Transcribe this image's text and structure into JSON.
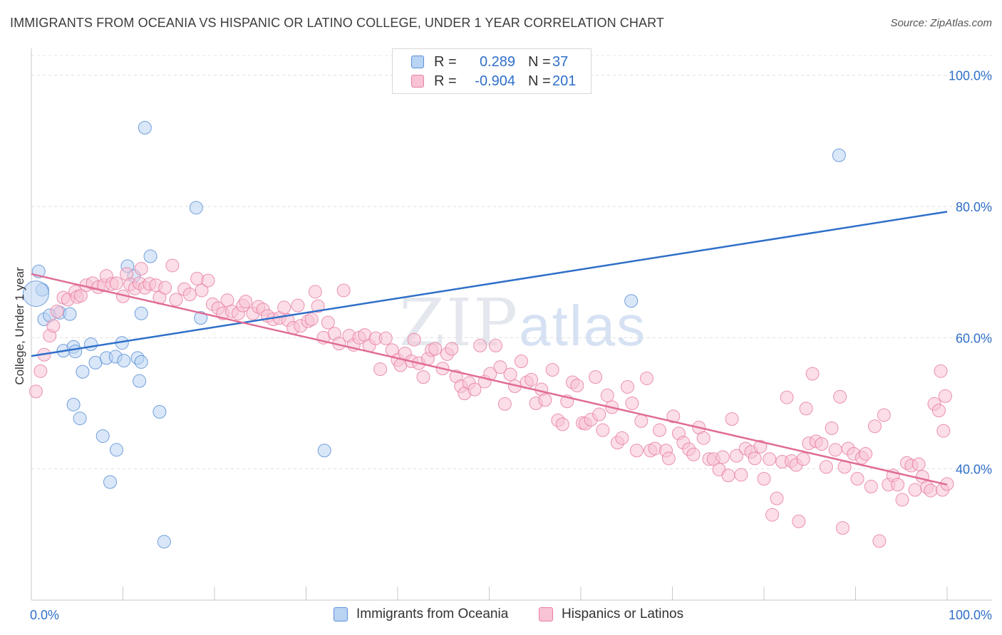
{
  "chart_data": {
    "type": "scatter",
    "title": "IMMIGRANTS FROM OCEANIA VS HISPANIC OR LATINO COLLEGE, UNDER 1 YEAR CORRELATION CHART",
    "source": "Source: ZipAtlas.com",
    "xlabel": "",
    "ylabel": "College, Under 1 year",
    "xlim": [
      0,
      100
    ],
    "ylim": [
      20,
      103
    ],
    "x_tick_labels": [
      "0.0%",
      "100.0%"
    ],
    "y_ticks": [
      40,
      60,
      80,
      100
    ],
    "y_tick_labels": [
      "40.0%",
      "60.0%",
      "80.0%",
      "100.0%"
    ],
    "watermark": {
      "zip": "ZIP",
      "atlas": "atlas"
    },
    "legend": {
      "r_label": "R =",
      "n_label": "N =",
      "rows": [
        {
          "r": "0.289",
          "n": "37"
        },
        {
          "r": "-0.904",
          "n": "201"
        }
      ]
    },
    "series": [
      {
        "name": "Immigrants from Oceania",
        "color": "#5b8fd6",
        "fill": "#b9d3f3",
        "trend": {
          "x": [
            0,
            100
          ],
          "y": [
            57.2,
            79.2
          ],
          "color": "#2f6fc9"
        },
        "points": [
          [
            0.8,
            70.1
          ],
          [
            1.2,
            67.3
          ],
          [
            1.4,
            62.8
          ],
          [
            2.0,
            63.4
          ],
          [
            3.1,
            63.8
          ],
          [
            4.2,
            63.6
          ],
          [
            3.5,
            58.0
          ],
          [
            4.6,
            58.6
          ],
          [
            4.8,
            57.9
          ],
          [
            6.5,
            59.0
          ],
          [
            7.0,
            56.2
          ],
          [
            8.2,
            56.9
          ],
          [
            9.2,
            57.1
          ],
          [
            10.1,
            56.5
          ],
          [
            9.9,
            59.2
          ],
          [
            11.6,
            56.9
          ],
          [
            12.0,
            56.3
          ],
          [
            5.6,
            54.8
          ],
          [
            11.8,
            53.4
          ],
          [
            4.6,
            49.8
          ],
          [
            5.3,
            47.7
          ],
          [
            7.8,
            45.0
          ],
          [
            9.3,
            42.9
          ],
          [
            8.6,
            38.0
          ],
          [
            12.0,
            63.7
          ],
          [
            11.2,
            69.4
          ],
          [
            10.5,
            70.9
          ],
          [
            12.4,
            92.0
          ],
          [
            13.0,
            72.4
          ],
          [
            14.0,
            48.7
          ],
          [
            14.5,
            28.9
          ],
          [
            18.0,
            79.8
          ],
          [
            18.5,
            63.0
          ],
          [
            32.0,
            42.8
          ],
          [
            65.5,
            65.6
          ],
          [
            88.2,
            87.8
          ],
          [
            0.5,
            66.7
          ]
        ]
      },
      {
        "name": "Hispanics or Latinos",
        "color": "#e87fa3",
        "fill": "#f8c3d4",
        "trend": {
          "x": [
            0,
            100
          ],
          "y": [
            69.7,
            37.6
          ],
          "color": "#e06c95"
        },
        "points": [
          [
            0.5,
            51.8
          ],
          [
            1.0,
            54.9
          ],
          [
            1.4,
            57.4
          ],
          [
            2.0,
            60.3
          ],
          [
            2.4,
            61.8
          ],
          [
            2.8,
            64.0
          ],
          [
            3.5,
            66.1
          ],
          [
            4.0,
            65.8
          ],
          [
            4.8,
            67.0
          ],
          [
            5.0,
            66.2
          ],
          [
            5.4,
            66.4
          ],
          [
            6.0,
            68.0
          ],
          [
            6.7,
            68.3
          ],
          [
            7.3,
            67.7
          ],
          [
            7.9,
            68.0
          ],
          [
            8.2,
            69.4
          ],
          [
            8.8,
            68.2
          ],
          [
            9.3,
            68.3
          ],
          [
            10.0,
            66.3
          ],
          [
            10.4,
            69.7
          ],
          [
            10.8,
            68.1
          ],
          [
            11.3,
            67.5
          ],
          [
            11.8,
            68.3
          ],
          [
            12.0,
            70.5
          ],
          [
            12.4,
            67.6
          ],
          [
            12.9,
            68.2
          ],
          [
            13.6,
            68.0
          ],
          [
            14.0,
            66.1
          ],
          [
            14.6,
            67.6
          ],
          [
            15.4,
            71.0
          ],
          [
            15.8,
            65.8
          ],
          [
            16.7,
            67.4
          ],
          [
            17.3,
            66.6
          ],
          [
            18.1,
            69.0
          ],
          [
            18.6,
            67.2
          ],
          [
            19.3,
            68.7
          ],
          [
            19.8,
            65.1
          ],
          [
            20.4,
            64.5
          ],
          [
            20.9,
            63.7
          ],
          [
            21.4,
            65.7
          ],
          [
            21.9,
            64.0
          ],
          [
            22.6,
            63.7
          ],
          [
            23.1,
            64.9
          ],
          [
            23.4,
            65.5
          ],
          [
            24.2,
            63.7
          ],
          [
            24.8,
            64.7
          ],
          [
            25.3,
            64.3
          ],
          [
            25.8,
            63.3
          ],
          [
            26.4,
            62.8
          ],
          [
            27.1,
            63.0
          ],
          [
            27.6,
            64.6
          ],
          [
            28.0,
            62.7
          ],
          [
            28.6,
            61.5
          ],
          [
            29.1,
            64.9
          ],
          [
            29.4,
            61.8
          ],
          [
            30.2,
            62.5
          ],
          [
            30.6,
            62.8
          ],
          [
            31.0,
            67.0
          ],
          [
            31.3,
            64.8
          ],
          [
            31.9,
            60.0
          ],
          [
            32.4,
            62.3
          ],
          [
            33.1,
            60.6
          ],
          [
            33.6,
            59.1
          ],
          [
            34.1,
            67.2
          ],
          [
            34.7,
            60.3
          ],
          [
            35.2,
            58.9
          ],
          [
            35.8,
            60.0
          ],
          [
            36.4,
            60.4
          ],
          [
            36.9,
            58.8
          ],
          [
            37.6,
            59.9
          ],
          [
            38.1,
            55.2
          ],
          [
            38.7,
            59.9
          ],
          [
            39.4,
            58.1
          ],
          [
            40.0,
            56.6
          ],
          [
            40.3,
            55.8
          ],
          [
            40.8,
            57.6
          ],
          [
            41.5,
            56.4
          ],
          [
            41.8,
            59.7
          ],
          [
            42.3,
            56.1
          ],
          [
            42.8,
            54.0
          ],
          [
            43.3,
            56.8
          ],
          [
            43.7,
            58.1
          ],
          [
            44.1,
            58.3
          ],
          [
            44.9,
            55.3
          ],
          [
            45.4,
            57.5
          ],
          [
            45.9,
            58.3
          ],
          [
            46.4,
            54.1
          ],
          [
            46.9,
            52.6
          ],
          [
            47.3,
            51.5
          ],
          [
            47.8,
            53.1
          ],
          [
            48.4,
            52.1
          ],
          [
            49.0,
            58.8
          ],
          [
            49.5,
            53.3
          ],
          [
            50.1,
            54.5
          ],
          [
            50.7,
            58.8
          ],
          [
            51.2,
            55.5
          ],
          [
            51.7,
            49.9
          ],
          [
            52.3,
            54.4
          ],
          [
            52.8,
            52.6
          ],
          [
            53.5,
            56.4
          ],
          [
            54.1,
            53.2
          ],
          [
            54.6,
            53.6
          ],
          [
            55.1,
            50.0
          ],
          [
            55.7,
            52.1
          ],
          [
            56.1,
            50.5
          ],
          [
            56.9,
            55.1
          ],
          [
            57.5,
            47.4
          ],
          [
            58.0,
            46.8
          ],
          [
            58.5,
            50.3
          ],
          [
            59.1,
            53.2
          ],
          [
            59.6,
            52.7
          ],
          [
            60.2,
            47.0
          ],
          [
            60.5,
            46.9
          ],
          [
            61.1,
            47.5
          ],
          [
            61.6,
            54.0
          ],
          [
            62.0,
            48.3
          ],
          [
            62.4,
            45.9
          ],
          [
            62.9,
            51.2
          ],
          [
            63.4,
            49.4
          ],
          [
            64.0,
            44.0
          ],
          [
            64.5,
            44.7
          ],
          [
            65.1,
            52.5
          ],
          [
            65.6,
            50.0
          ],
          [
            66.1,
            42.8
          ],
          [
            66.6,
            47.3
          ],
          [
            67.2,
            53.8
          ],
          [
            67.6,
            42.8
          ],
          [
            68.1,
            43.1
          ],
          [
            68.6,
            45.9
          ],
          [
            69.3,
            42.8
          ],
          [
            69.6,
            41.6
          ],
          [
            70.1,
            48.0
          ],
          [
            70.7,
            45.4
          ],
          [
            71.2,
            44.0
          ],
          [
            71.8,
            43.0
          ],
          [
            72.3,
            42.2
          ],
          [
            72.9,
            46.3
          ],
          [
            73.4,
            44.7
          ],
          [
            74.0,
            41.5
          ],
          [
            74.5,
            41.5
          ],
          [
            75.1,
            39.9
          ],
          [
            75.5,
            41.8
          ],
          [
            76.1,
            39.0
          ],
          [
            76.5,
            47.6
          ],
          [
            77.0,
            42.0
          ],
          [
            77.5,
            39.1
          ],
          [
            78.0,
            43.1
          ],
          [
            78.6,
            42.6
          ],
          [
            79.0,
            41.6
          ],
          [
            79.6,
            43.4
          ],
          [
            80.0,
            38.5
          ],
          [
            80.6,
            41.5
          ],
          [
            80.9,
            33.0
          ],
          [
            81.4,
            35.5
          ],
          [
            82.0,
            41.1
          ],
          [
            82.5,
            50.9
          ],
          [
            83.0,
            41.2
          ],
          [
            83.5,
            40.6
          ],
          [
            83.8,
            32.0
          ],
          [
            84.3,
            41.5
          ],
          [
            84.9,
            43.9
          ],
          [
            85.3,
            54.5
          ],
          [
            85.7,
            44.2
          ],
          [
            86.3,
            43.8
          ],
          [
            86.8,
            40.3
          ],
          [
            87.4,
            46.2
          ],
          [
            87.8,
            42.9
          ],
          [
            88.3,
            51.0
          ],
          [
            88.8,
            40.3
          ],
          [
            89.2,
            43.1
          ],
          [
            89.8,
            42.3
          ],
          [
            90.2,
            38.5
          ],
          [
            90.7,
            41.7
          ],
          [
            91.1,
            42.3
          ],
          [
            91.7,
            37.3
          ],
          [
            92.1,
            46.5
          ],
          [
            92.6,
            29.0
          ],
          [
            93.1,
            48.2
          ],
          [
            93.6,
            37.6
          ],
          [
            94.1,
            39.0
          ],
          [
            94.6,
            37.6
          ],
          [
            95.1,
            35.3
          ],
          [
            95.6,
            40.9
          ],
          [
            96.1,
            40.5
          ],
          [
            96.5,
            36.8
          ],
          [
            96.9,
            40.7
          ],
          [
            97.3,
            38.8
          ],
          [
            97.8,
            37.2
          ],
          [
            98.2,
            36.7
          ],
          [
            98.6,
            49.9
          ],
          [
            99.1,
            48.9
          ],
          [
            99.5,
            36.8
          ],
          [
            100.0,
            37.7
          ],
          [
            99.8,
            51.1
          ],
          [
            99.3,
            54.9
          ],
          [
            99.6,
            45.8
          ],
          [
            88.6,
            31.0
          ],
          [
            84.6,
            49.2
          ]
        ]
      }
    ]
  }
}
